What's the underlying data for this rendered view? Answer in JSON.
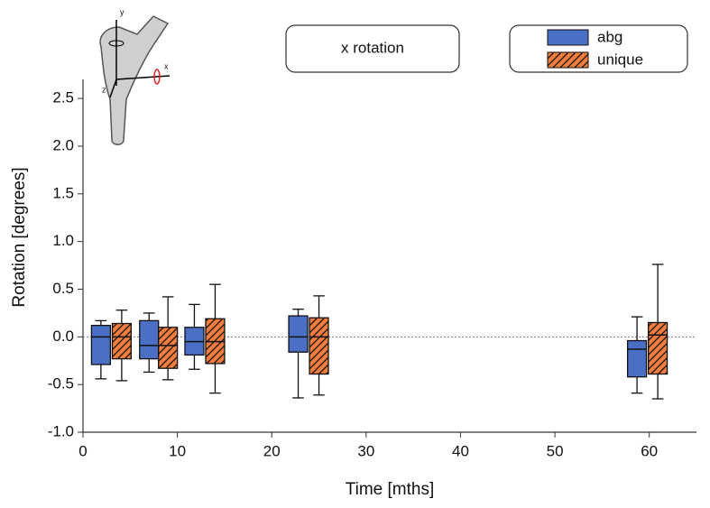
{
  "chart_data": {
    "type": "box",
    "annotation": "x rotation",
    "xlabel": "Time [mths]",
    "ylabel": "Rotation [degrees]",
    "inset_axis_labels": [
      "y",
      "x",
      "z"
    ],
    "xlim": [
      0,
      65
    ],
    "xticks": [
      0,
      10,
      20,
      30,
      40,
      50,
      60
    ],
    "ylim": [
      -1,
      2.7
    ],
    "yticks": [
      {
        "value": -1,
        "label": "-1.0"
      },
      -0.5,
      {
        "value": 0,
        "label": "0.0"
      },
      0.5,
      {
        "value": 1,
        "label": "1.0"
      },
      1.5,
      {
        "value": 2,
        "label": "2.0"
      },
      2.5
    ],
    "reference_line": 0,
    "series": [
      {
        "name": "abg",
        "color": "#4a6fc4",
        "x": [
          1.9,
          7.0,
          11.8,
          22.8,
          58.7
        ],
        "whislo": [
          -0.44,
          -0.37,
          -0.34,
          -0.64,
          -0.59
        ],
        "q1": [
          -0.29,
          -0.23,
          -0.19,
          -0.16,
          -0.42
        ],
        "med": [
          0.0,
          -0.09,
          -0.05,
          0.0,
          -0.13
        ],
        "q3": [
          0.12,
          0.17,
          0.1,
          0.22,
          -0.04
        ],
        "whishi": [
          0.17,
          0.25,
          0.34,
          0.29,
          0.21
        ]
      },
      {
        "name": "unique",
        "color": "#f07d3c",
        "hatch": "//",
        "x": [
          4.1,
          9.0,
          14.0,
          25.0,
          60.9
        ],
        "whislo": [
          -0.46,
          -0.45,
          -0.59,
          -0.61,
          -0.65
        ],
        "q1": [
          -0.23,
          -0.33,
          -0.28,
          -0.39,
          -0.39
        ],
        "med": [
          0.0,
          -0.09,
          -0.05,
          0.0,
          0.02
        ],
        "q3": [
          0.14,
          0.1,
          0.19,
          0.2,
          0.15
        ],
        "whishi": [
          0.28,
          0.42,
          0.55,
          0.43,
          0.76
        ]
      }
    ]
  }
}
